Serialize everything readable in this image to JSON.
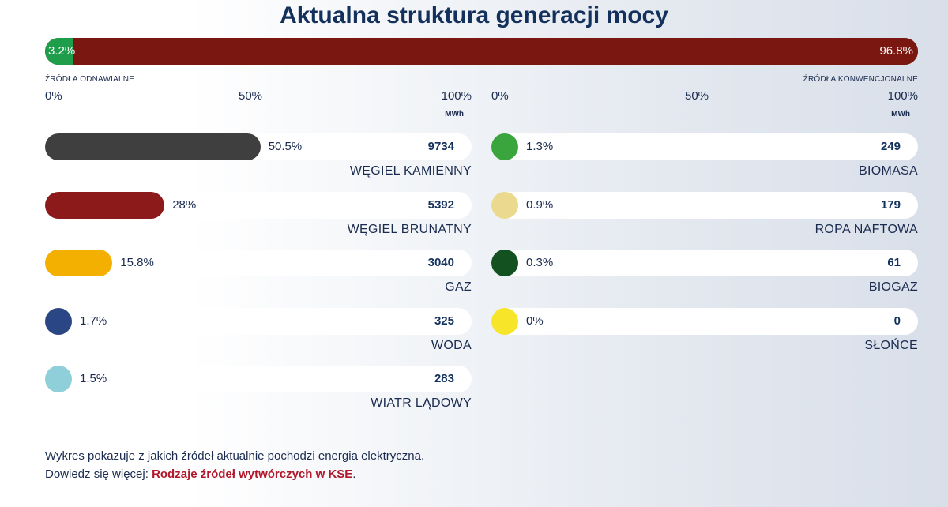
{
  "title": "Aktualna struktura generacji mocy",
  "split": {
    "renewable_label": "3.2%",
    "conventional_label": "96.8%",
    "renewable_share": 3.2,
    "conventional_share": 96.8,
    "renewable_color": "#1e9e4a",
    "conventional_color": "#7b1711"
  },
  "captions": {
    "renewable": "ŹRÓDŁA ODNAWIALNE",
    "conventional": "ŹRÓDŁA KONWENCJONALNE"
  },
  "axis": {
    "ticks": [
      "0%",
      "50%",
      "100%"
    ],
    "unit": "MWh"
  },
  "chart_data": {
    "type": "bar",
    "title": "Aktualna struktura generacji mocy",
    "xlim": [
      0,
      100
    ],
    "unit": "MWh",
    "panels": [
      {
        "sources": [
          {
            "name": "WĘGIEL KAMIENNY",
            "percent": 50.5,
            "percent_label": "50.5%",
            "mwh": "9734",
            "color": "#3f3f3f"
          },
          {
            "name": "WĘGIEL BRUNATNY",
            "percent": 28,
            "percent_label": "28%",
            "mwh": "5392",
            "color": "#8c1a1a"
          },
          {
            "name": "GAZ",
            "percent": 15.8,
            "percent_label": "15.8%",
            "mwh": "3040",
            "color": "#f4b000"
          },
          {
            "name": "WODA",
            "percent": 1.7,
            "percent_label": "1.7%",
            "mwh": "325",
            "color": "#2b4684"
          },
          {
            "name": "WIATR LĄDOWY",
            "percent": 1.5,
            "percent_label": "1.5%",
            "mwh": "283",
            "color": "#8fcfd9"
          }
        ]
      },
      {
        "sources": [
          {
            "name": "BIOMASA",
            "percent": 1.3,
            "percent_label": "1.3%",
            "mwh": "249",
            "color": "#3aa53c"
          },
          {
            "name": "ROPA NAFTOWA",
            "percent": 0.9,
            "percent_label": "0.9%",
            "mwh": "179",
            "color": "#ead98f"
          },
          {
            "name": "BIOGAZ",
            "percent": 0.3,
            "percent_label": "0.3%",
            "mwh": "61",
            "color": "#135220"
          },
          {
            "name": "SŁOŃCE",
            "percent": 0,
            "percent_label": "0%",
            "mwh": "0",
            "color": "#f7e52a"
          }
        ]
      }
    ]
  },
  "footer": {
    "line1": "Wykres pokazuje z jakich źródeł aktualnie pochodzi energia elektryczna.",
    "line2_prefix": "Dowiedz się więcej: ",
    "link": "Rodzaje źródeł wytwórczych w KSE",
    "line2_suffix": "."
  }
}
